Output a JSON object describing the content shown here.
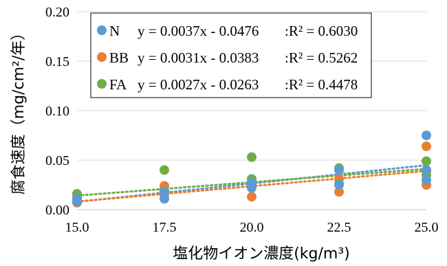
{
  "chart_data": {
    "type": "scatter",
    "xlabel": "塩化物イオン濃度(kg/m³)",
    "ylabel": "腐食速度（mg/cm²/年）",
    "xlim": [
      15.0,
      25.0
    ],
    "ylim": [
      0.0,
      0.2
    ],
    "x_ticks": [
      "15.0",
      "17.5",
      "20.0",
      "22.5",
      "25.0"
    ],
    "y_ticks": [
      "0.00",
      "0.05",
      "0.10",
      "0.15",
      "0.20"
    ],
    "grid": "horizontal",
    "legend_position": "top-left",
    "series": [
      {
        "name": "N",
        "color": "#5B9BD5",
        "equation": "y = 0.0037x - 0.0476",
        "r2": ":R² = 0.6030",
        "points": [
          [
            15.0,
            0.011
          ],
          [
            15.0,
            0.008
          ],
          [
            17.5,
            0.011
          ],
          [
            17.5,
            0.018
          ],
          [
            20.0,
            0.022
          ],
          [
            20.0,
            0.027
          ],
          [
            22.5,
            0.025
          ],
          [
            22.5,
            0.04
          ],
          [
            25.0,
            0.075
          ],
          [
            25.0,
            0.04
          ],
          [
            25.0,
            0.03
          ]
        ]
      },
      {
        "name": "BB",
        "color": "#ED7D31",
        "equation": "y = 0.0031x - 0.0383",
        "r2": ":R² = 0.5262",
        "points": [
          [
            15.0,
            0.007
          ],
          [
            15.0,
            0.012
          ],
          [
            17.5,
            0.024
          ],
          [
            17.5,
            0.015
          ],
          [
            20.0,
            0.013
          ],
          [
            20.0,
            0.024
          ],
          [
            22.5,
            0.018
          ],
          [
            22.5,
            0.031
          ],
          [
            25.0,
            0.064
          ],
          [
            25.0,
            0.025
          ],
          [
            25.0,
            0.039
          ]
        ]
      },
      {
        "name": "FA",
        "color": "#70AD47",
        "equation": "y = 0.0027x - 0.0263",
        "r2": ":R² = 0.4478",
        "points": [
          [
            15.0,
            0.016
          ],
          [
            15.0,
            0.01
          ],
          [
            17.5,
            0.04
          ],
          [
            17.5,
            0.019
          ],
          [
            20.0,
            0.053
          ],
          [
            20.0,
            0.031
          ],
          [
            20.0,
            0.028
          ],
          [
            22.5,
            0.042
          ],
          [
            22.5,
            0.026
          ],
          [
            25.0,
            0.049
          ],
          [
            25.0,
            0.035
          ]
        ]
      }
    ]
  }
}
